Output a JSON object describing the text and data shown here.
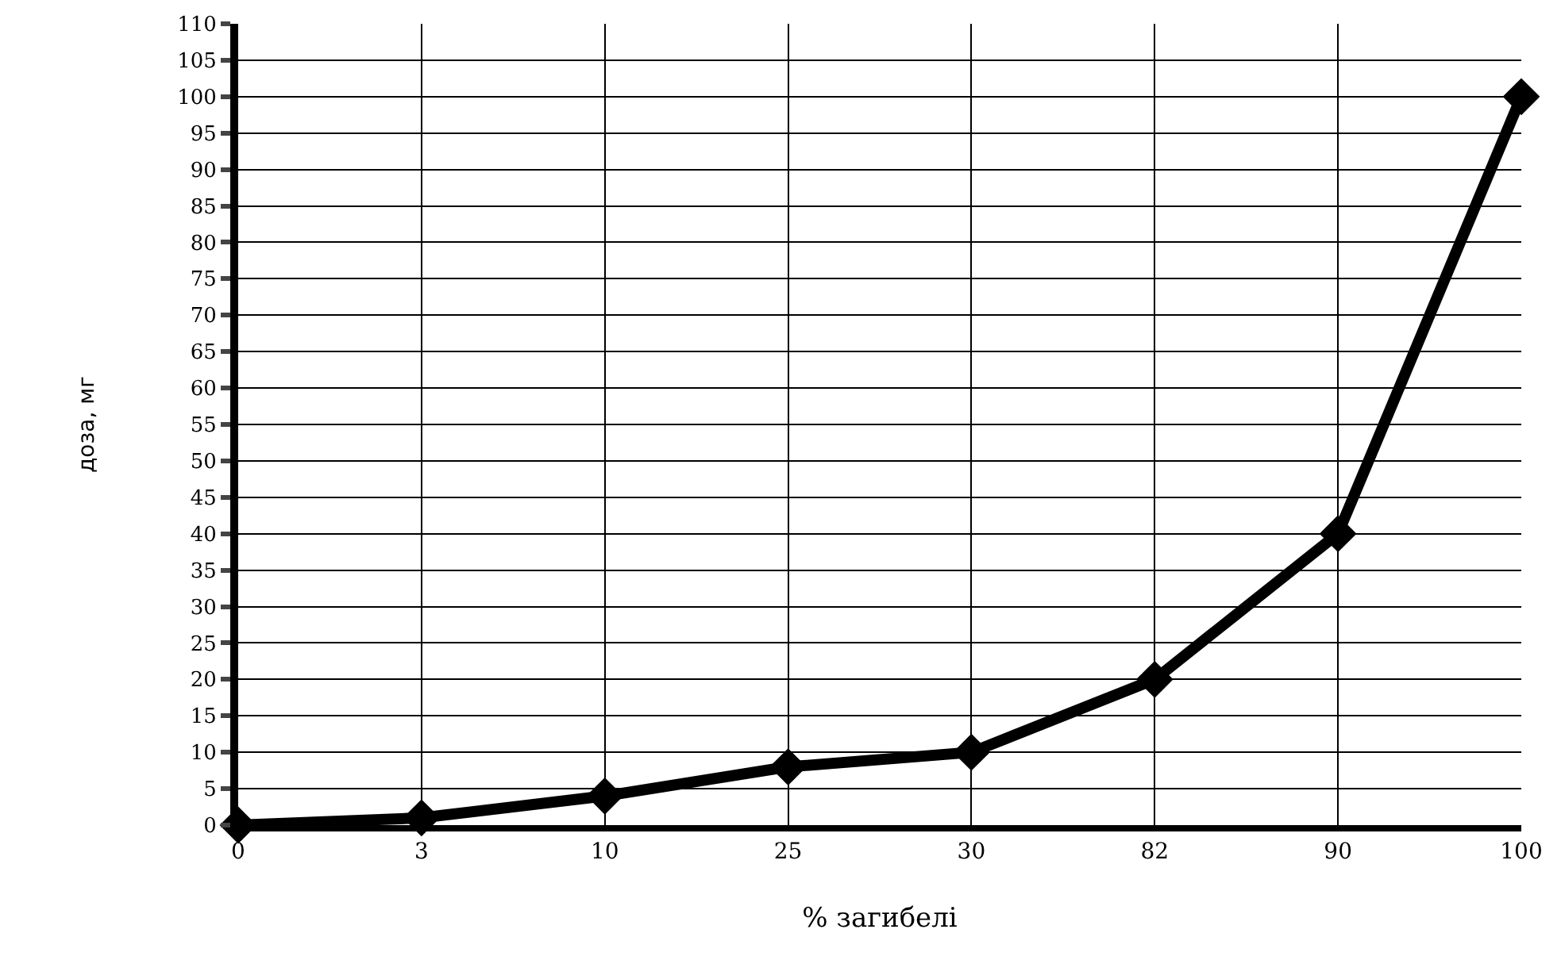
{
  "chart_data": {
    "type": "line",
    "xlabel": "% загибелі",
    "ylabel": "доза, мг",
    "categories": [
      "0",
      "3",
      "10",
      "25",
      "30",
      "82",
      "90",
      "100"
    ],
    "series": [
      {
        "color": "#000000",
        "values": [
          0,
          1,
          4,
          8,
          10,
          20,
          40,
          100
        ]
      }
    ],
    "ylim": [
      0,
      110
    ],
    "yticks": [
      0,
      5,
      10,
      15,
      20,
      25,
      30,
      35,
      40,
      45,
      50,
      55,
      60,
      65,
      70,
      75,
      80,
      85,
      90,
      95,
      100,
      105,
      110
    ],
    "grid": true,
    "marker": "diamond",
    "line_style": "solid"
  }
}
